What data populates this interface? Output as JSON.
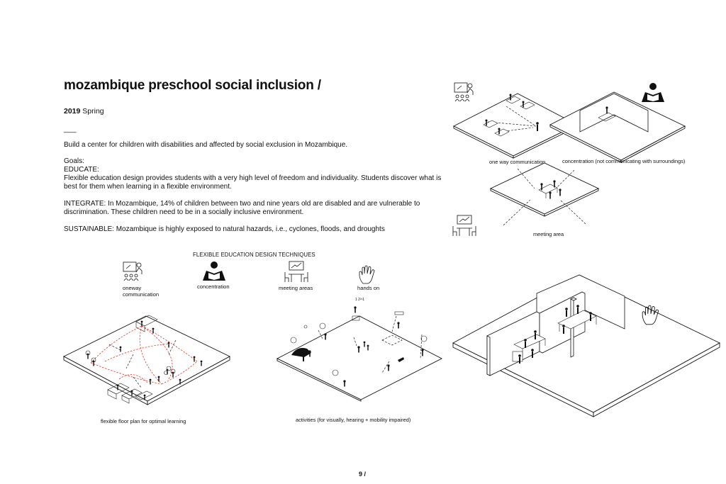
{
  "header": {
    "title": "mozambique preschool social inclusion /",
    "year": "2019",
    "season": "Spring",
    "divider": "___"
  },
  "intro": {
    "summary": "Build a center for children with disabilities and affected by social exclusion in Mozambique.",
    "goals_heading": "Goals:",
    "educate_heading": "EDUCATE:",
    "educate_text": "Flexible education design provides students with a very high level of freedom and individuality. Students discover what is best for them when learning in a flexible environment.",
    "integrate_text": "INTEGRATE: In Mozambique, 14% of children between two and nine years old are disabled and are vulnerable to discrimination. These children need to be in a socially inclusive environment.",
    "sustainable_text": "SUSTAINABLE: Mozambique is highly exposed to natural hazards, i.e., cyclones, floods, and droughts"
  },
  "techniques": {
    "heading": "FLEXIBLE EDUCATION DESIGN TECHNIQUES",
    "items": [
      {
        "icon": "teacher-board-icon",
        "label_line1": "oneway",
        "label_line2": "communication"
      },
      {
        "icon": "reading-person-icon",
        "label_line1": "concentration",
        "label_line2": ""
      },
      {
        "icon": "meeting-table-icon",
        "label_line1": "meeting areas",
        "label_line2": ""
      },
      {
        "icon": "hand-icon",
        "label_line1": "hands on",
        "label_line2": ""
      }
    ]
  },
  "diagrams": {
    "one_way": "one way communication",
    "concentration": "concentration (not communicating with surroundings)",
    "meeting": "meeting area",
    "floor_plan": "flexible floor plan for optimal learning",
    "activities": "activities (for visually, hearing + mobility impaired)"
  },
  "footer": {
    "page_number": "9 /"
  }
}
